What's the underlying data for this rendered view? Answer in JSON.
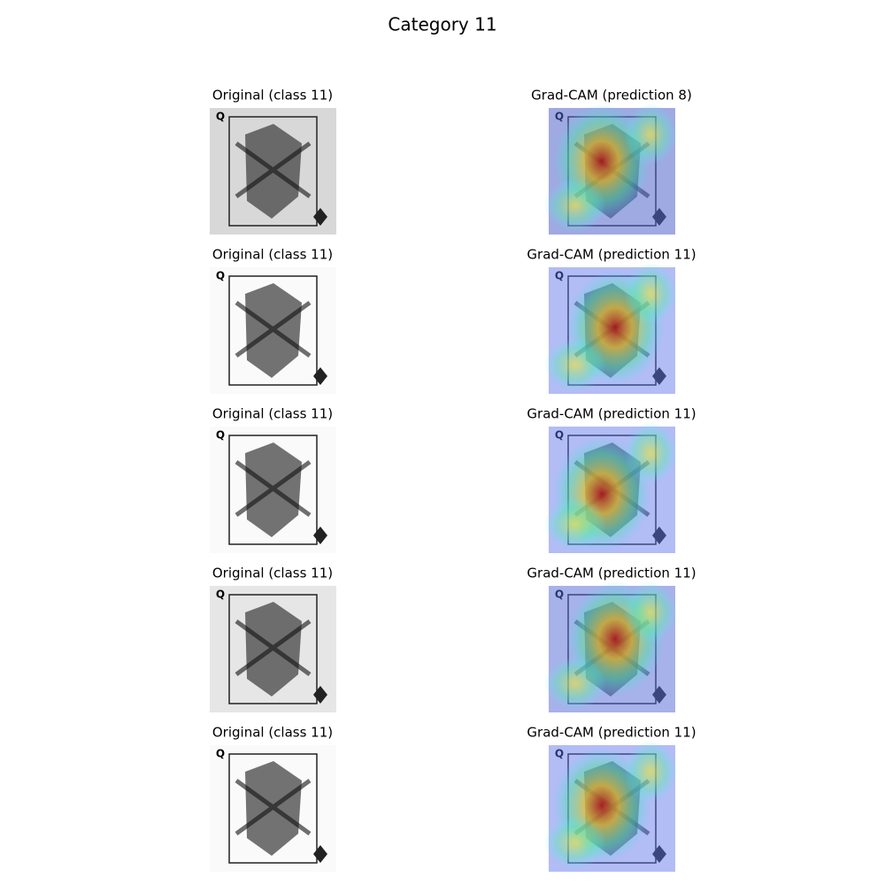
{
  "title": "Category 11",
  "rows": [
    {
      "left": "Original (class 11)",
      "right": "Grad-CAM (prediction 8)"
    },
    {
      "left": "Original (class 11)",
      "right": "Grad-CAM (prediction 11)"
    },
    {
      "left": "Original (class 11)",
      "right": "Grad-CAM (prediction 11)"
    },
    {
      "left": "Original (class 11)",
      "right": "Grad-CAM (prediction 11)"
    },
    {
      "left": "Original (class 11)",
      "right": "Grad-CAM (prediction 11)"
    }
  ]
}
